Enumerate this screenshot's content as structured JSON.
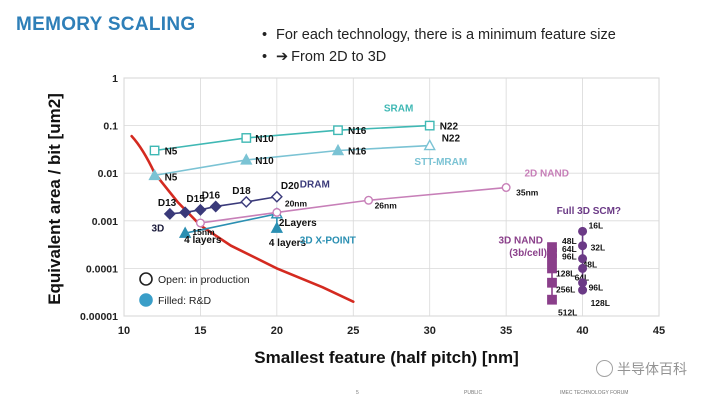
{
  "slide": {
    "title": "MEMORY SCALING",
    "bullets": [
      {
        "marker": "•",
        "text": "For each technology, there is a minimum feature size"
      },
      {
        "marker": "•",
        "arrow": "➔",
        "text": "From 2D to 3D"
      }
    ]
  },
  "footer": {
    "page": "5",
    "public": "PUBLIC",
    "forum": "IMEC TECHNOLOGY FORUM"
  },
  "watermark": {
    "text": "半导体百科"
  },
  "chart_data": {
    "type": "scatter",
    "xlabel": "Smallest feature (half pitch) [nm]",
    "ylabel": "Equivalent area / bit [um2]",
    "xlim": [
      10,
      45
    ],
    "ylim": [
      1e-05,
      1
    ],
    "yscale": "log",
    "x_ticks": [
      "10",
      "15",
      "20",
      "25",
      "30",
      "35",
      "40",
      "45"
    ],
    "y_ticks": [
      {
        "value": 1,
        "label": "1"
      },
      {
        "value": 0.1,
        "label": "0.1"
      },
      {
        "value": 0.01,
        "label": "0.01"
      },
      {
        "value": 0.001,
        "label": "0.001"
      },
      {
        "value": 0.0001,
        "label": "0.0001"
      },
      {
        "value": 1e-05,
        "label": "0.00001"
      }
    ],
    "grid": true,
    "legend": [
      {
        "label": "Open: in production",
        "style": "open"
      },
      {
        "label": "Filled: R&D",
        "style": "filled"
      }
    ],
    "colors": {
      "sram": "#3fb8b4",
      "stt": "#7bc3d4",
      "dram": "#3a3a7a",
      "xpoint": "#2a8fb2",
      "nand2d": "#c77fb8",
      "nand3d": "#8a3f8a",
      "scm": "#6b3a86",
      "limit": "#d42a20"
    },
    "series": [
      {
        "name": "SRAM",
        "color": "sram",
        "marker": "square",
        "points": [
          {
            "x": 12,
            "y": 0.03,
            "label": "N5",
            "filled": false
          },
          {
            "x": 18,
            "y": 0.055,
            "label": "N10",
            "filled": false
          },
          {
            "x": 24,
            "y": 0.08,
            "label": "N16",
            "filled": false
          },
          {
            "x": 30,
            "y": 0.1,
            "label": "N22",
            "filled": false
          }
        ]
      },
      {
        "name": "STT-MRAM",
        "color": "stt",
        "marker": "triangle",
        "points": [
          {
            "x": 12,
            "y": 0.009,
            "label": "N5",
            "filled": true
          },
          {
            "x": 18,
            "y": 0.019,
            "label": "N10",
            "filled": true
          },
          {
            "x": 24,
            "y": 0.03,
            "label": "N16",
            "filled": true
          },
          {
            "x": 30,
            "y": 0.038,
            "label": "N22",
            "filled": false
          }
        ]
      },
      {
        "name": "DRAM",
        "color": "dram",
        "marker": "diamond",
        "points": [
          {
            "x": 13,
            "y": 0.0014,
            "label": "D13",
            "filled": true
          },
          {
            "x": 14,
            "y": 0.0015,
            "label": "",
            "filled": true
          },
          {
            "x": 15,
            "y": 0.0017,
            "label": "D15",
            "filled": true
          },
          {
            "x": 16,
            "y": 0.002,
            "label": "D16",
            "filled": true
          },
          {
            "x": 18,
            "y": 0.0025,
            "label": "D18",
            "filled": false
          },
          {
            "x": 20,
            "y": 0.0032,
            "label": "D20",
            "filled": false
          }
        ]
      },
      {
        "name": "3D X-POINT",
        "color": "xpoint",
        "marker": "triangle",
        "points": [
          {
            "x": 14,
            "y": 0.00055,
            "label": "4 layers",
            "filled": true
          },
          {
            "x": 20,
            "y": 0.0014,
            "label": "2Layers",
            "filled": false
          },
          {
            "x": 20,
            "y": 0.0007,
            "label": "4 layers",
            "filled": true
          }
        ]
      },
      {
        "name": "2D NAND",
        "color": "nand2d",
        "marker": "circle",
        "points": [
          {
            "x": 15,
            "y": 0.0009,
            "label": "15nm",
            "filled": false
          },
          {
            "x": 20,
            "y": 0.0015,
            "label": "20nm",
            "filled": false
          },
          {
            "x": 26,
            "y": 0.0027,
            "label": "26nm",
            "filled": false
          },
          {
            "x": 35,
            "y": 0.005,
            "label": "35nm",
            "filled": false
          }
        ]
      },
      {
        "name": "3D NAND (3b/cell)",
        "color": "nand3d",
        "marker": "square",
        "points": [
          {
            "x": 38,
            "y": 0.00028,
            "label": "48L",
            "filled": true
          },
          {
            "x": 38,
            "y": 0.00021,
            "label": "64L",
            "filled": true
          },
          {
            "x": 38,
            "y": 0.00016,
            "label": "96L",
            "filled": true
          },
          {
            "x": 38,
            "y": 0.0001,
            "label": "128L",
            "filled": true
          },
          {
            "x": 38,
            "y": 5e-05,
            "label": "256L",
            "filled": true
          },
          {
            "x": 38,
            "y": 2.2e-05,
            "label": "512L",
            "filled": true
          }
        ]
      },
      {
        "name": "Full 3D SCM?",
        "color": "scm",
        "marker": "circle",
        "points": [
          {
            "x": 40,
            "y": 0.0006,
            "label": "16L",
            "filled": true
          },
          {
            "x": 40,
            "y": 0.0003,
            "label": "32L",
            "filled": true
          },
          {
            "x": 40,
            "y": 0.00016,
            "label": "48L",
            "filled": true
          },
          {
            "x": 40,
            "y": 0.0001,
            "label": "64L",
            "filled": true
          },
          {
            "x": 40,
            "y": 5e-05,
            "label": "96L",
            "filled": true
          },
          {
            "x": 40,
            "y": 3.5e-05,
            "label": "128L",
            "filled": true
          }
        ]
      }
    ],
    "limit_curve": {
      "color": "limit",
      "points": [
        [
          10.5,
          0.06
        ],
        [
          12,
          0.01
        ],
        [
          13.5,
          0.0025
        ],
        [
          15,
          0.0008
        ],
        [
          17,
          0.0003
        ],
        [
          20,
          0.0001
        ],
        [
          23,
          4e-05
        ],
        [
          25,
          2e-05
        ]
      ]
    },
    "annotations": [
      {
        "text": "SRAM",
        "x": 27,
        "y": 0.2,
        "color": "sram"
      },
      {
        "text": "STT-MRAM",
        "x": 29,
        "y": 0.015,
        "color": "stt"
      },
      {
        "text": "DRAM",
        "x": 21.5,
        "y": 0.005,
        "color": "dram"
      },
      {
        "text": "3D X-POINT",
        "x": 21.5,
        "y": 0.00033,
        "color": "xpoint"
      },
      {
        "text": "2D NAND",
        "x": 36.2,
        "y": 0.0085,
        "color": "nand2d"
      },
      {
        "text": "3D NAND",
        "x": 34.5,
        "y": 0.00033,
        "color": "nand3d"
      },
      {
        "text": "(3b/cell)",
        "x": 35.2,
        "y": 0.00018,
        "color": "nand3d"
      },
      {
        "text": "Full 3D SCM?",
        "x": 38.3,
        "y": 0.0014,
        "color": "scm"
      },
      {
        "text": "3D",
        "x": 11.8,
        "y": 0.0006,
        "color": "dark"
      }
    ]
  }
}
